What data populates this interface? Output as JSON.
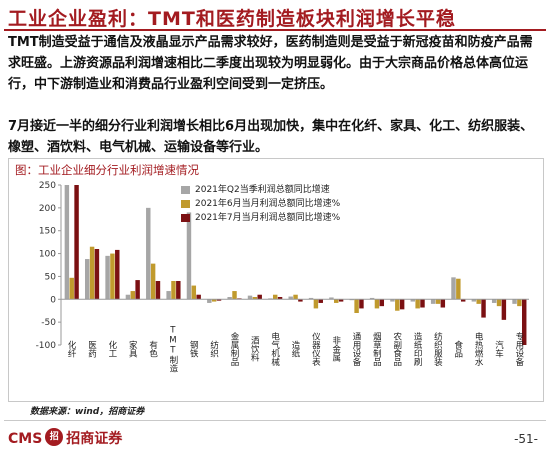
{
  "title": "工业企业盈利：TMT和医药制造板块利润增长平稳",
  "paragraphs": [
    "TMT制造受益于通信及液晶显示产品需求较好，医药制造则是受益于新冠疫苗和防疫产品需求旺盛。上游资源品利润增速相比二季度出现较为明显弱化。由于大宗商品价格总体高位运行，中下游制造业和消费品行业盈利空间受到一定挤压。",
    "7月接近一半的细分行业利润增长相比6月出现加快，集中在化纤、家具、化工、纺织服装、橡塑、酒饮料、电气机械、运输设备等行业。"
  ],
  "figure_caption": "图：工业企业细分行业利润增速情况",
  "source": "数据来源：wind，招商证券",
  "footer": {
    "logo_text": "CMS",
    "logo_mark": "招",
    "logo_cn": "招商证券",
    "page": "-51-"
  },
  "colors": {
    "series": [
      "#a6a6a6",
      "#c09a2d",
      "#7b1012"
    ],
    "title": "#a31b20"
  },
  "chart_data": {
    "type": "bar",
    "title": "",
    "xlabel": "",
    "ylabel": "",
    "ylim": [
      -100,
      250
    ],
    "yticks": [
      -100,
      -50,
      0,
      50,
      100,
      150,
      200,
      250
    ],
    "categories": [
      "化纤",
      "医药",
      "化工",
      "家具",
      "有色",
      "TMT制造",
      "钢铁",
      "纺织",
      "金属制品",
      "酒饮料",
      "电气机械",
      "造纸",
      "仪器仪表",
      "非金属",
      "通用设备",
      "烟草制品",
      "农副食品",
      "造纸印刷",
      "纺织服装",
      "食品",
      "电热燃水",
      "汽车",
      "专用设备"
    ],
    "x_tick_labels": [
      "化纤",
      "医药",
      "化工",
      "家具",
      "有色",
      "TMT制造",
      "钢铁",
      "纺织",
      "金属制品",
      "酒饮料",
      "电气机械",
      "造纸",
      "仪器仪表",
      "非金属",
      "通用设备",
      "烟草制品",
      "农副食品",
      "造纸印刷",
      "纺织服装",
      "食品",
      "电热燃水",
      "汽车",
      "专用设备"
    ],
    "series": [
      {
        "name": "2021年Q2当季利润总额同比增速",
        "values": [
          250,
          88,
          95,
          10,
          200,
          18,
          190,
          -8,
          5,
          8,
          2,
          6,
          3,
          4,
          -2,
          3,
          -5,
          -5,
          -10,
          48,
          -5,
          -8,
          -10
        ]
      },
      {
        "name": "2021年6月当月利润总额同比增速%",
        "values": [
          47,
          115,
          100,
          18,
          78,
          40,
          30,
          -5,
          18,
          5,
          10,
          10,
          -20,
          -8,
          -30,
          -20,
          -25,
          -20,
          -10,
          45,
          -10,
          -15,
          -15
        ]
      },
      {
        "name": "2021年7月当月利润总额同比增速%",
        "values": [
          250,
          110,
          108,
          42,
          40,
          40,
          10,
          -3,
          2,
          10,
          5,
          -5,
          -8,
          -5,
          -20,
          -15,
          -22,
          -18,
          -18,
          -5,
          -40,
          -45,
          -100
        ]
      }
    ]
  }
}
